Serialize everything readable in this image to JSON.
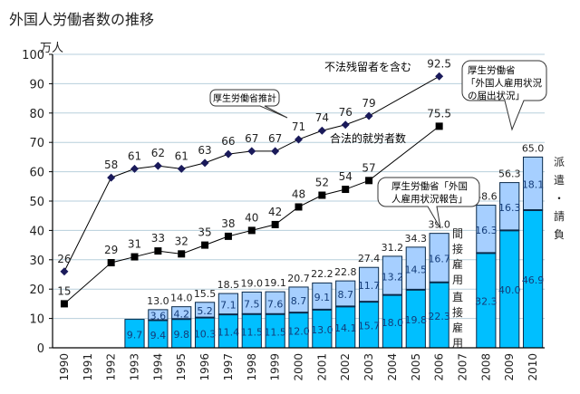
{
  "chart_data": {
    "type": "bar",
    "title": "外国人労働者数の推移",
    "ylabel": "万人",
    "xlabel": "",
    "ylim": [
      0,
      100
    ],
    "yticks": [
      0,
      10,
      20,
      30,
      40,
      50,
      60,
      70,
      80,
      90,
      100
    ],
    "grid": true,
    "categories": [
      "1990",
      "1991",
      "1992",
      "1993",
      "1994",
      "1995",
      "1996",
      "1997",
      "1998",
      "1999",
      "2000",
      "2001",
      "2002",
      "2003",
      "2004",
      "2005",
      "2006",
      "2007",
      "2008",
      "2009",
      "2010"
    ],
    "bar_series": [
      {
        "name": "直接雇用",
        "color": "#00BFFF",
        "values": [
          null,
          null,
          null,
          9.7,
          9.4,
          9.8,
          10.3,
          11.4,
          11.5,
          11.5,
          12.0,
          13.0,
          14.1,
          15.7,
          18.0,
          19.8,
          22.3,
          null,
          32.3,
          40.0,
          46.9
        ]
      },
      {
        "name": "間接雇用 / 派遣・請負",
        "color": "#A6CFFF",
        "values": [
          null,
          null,
          null,
          null,
          3.6,
          4.2,
          5.2,
          7.1,
          7.5,
          7.6,
          8.7,
          9.1,
          8.7,
          11.7,
          13.2,
          14.5,
          16.7,
          null,
          16.3,
          16.3,
          18.1
        ]
      }
    ],
    "bar_totals": [
      null,
      null,
      null,
      null,
      13.0,
      14.0,
      15.5,
      18.5,
      19.0,
      19.1,
      20.7,
      22.2,
      22.8,
      27.4,
      31.2,
      34.3,
      39.0,
      null,
      48.6,
      56.3,
      65.0
    ],
    "line_series": [
      {
        "name": "不法残留者を含む",
        "marker": "diamond",
        "color": "#1a1a5a",
        "values": [
          26,
          null,
          58,
          61,
          62,
          61,
          63,
          66,
          67,
          67,
          71,
          74,
          76,
          79,
          null,
          null,
          92.5,
          null,
          null,
          null,
          null
        ],
        "labels": [
          "26",
          null,
          "58",
          "61",
          "62",
          "61",
          "63",
          "66",
          "67",
          "67",
          "71",
          "74",
          "76",
          "79",
          null,
          null,
          "92.5",
          null,
          null,
          null,
          null
        ]
      },
      {
        "name": "合法的就労者数",
        "marker": "square",
        "color": "#000000",
        "values": [
          15,
          null,
          29,
          31,
          33,
          32,
          35,
          38,
          40,
          42,
          48,
          52,
          54,
          57,
          null,
          null,
          75.5,
          null,
          null,
          null,
          null
        ],
        "labels": [
          "15",
          null,
          "29",
          "31",
          "33",
          "32",
          "35",
          "38",
          "40",
          "42",
          "48",
          "52",
          "54",
          "57",
          null,
          null,
          "75.5",
          null,
          null,
          null,
          null
        ]
      }
    ],
    "annotations": {
      "illegal_label": "不法残留者を含む",
      "legal_label": "合法的就労者数",
      "callout_estimate": "厚生労働省推計",
      "callout_report_line1": "厚生労働省「外国",
      "callout_report_line2": "人雇用状況報告」",
      "callout_notify_line1": "厚生労働省",
      "callout_notify_line2": "「外国人雇用状況",
      "callout_notify_line3": "の届出状況」",
      "indirect_label": "間接雇用",
      "direct_label": "直接雇用",
      "dispatch_label": "派遣・請負"
    }
  }
}
